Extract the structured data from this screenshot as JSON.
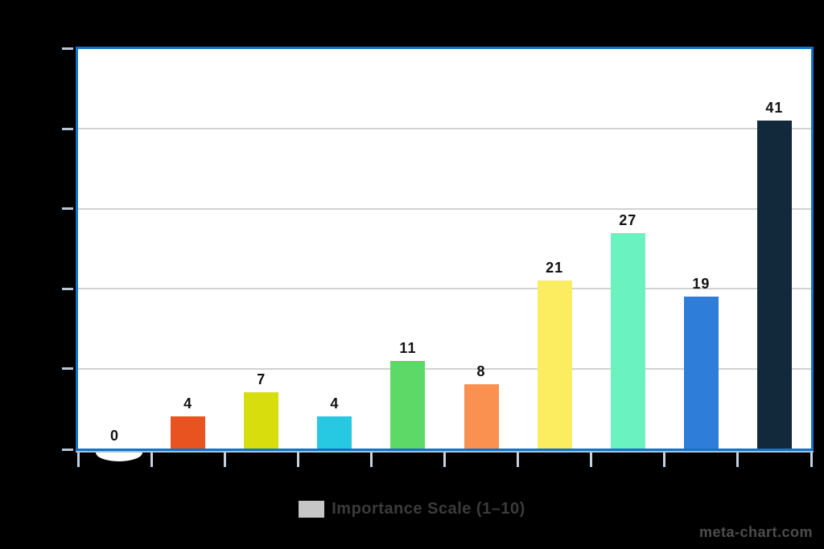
{
  "chart_data": {
    "type": "bar",
    "title": "",
    "series": [
      {
        "name": "Importance Scale (1–10)",
        "values": [
          0,
          4,
          7,
          4,
          11,
          8,
          21,
          27,
          19,
          41
        ],
        "colors": [
          "#ffffff",
          "#e9531f",
          "#d8dd0e",
          "#27c8e1",
          "#5cd966",
          "#fa9150",
          "#fcec60",
          "#6af3c1",
          "#2e7dd9",
          "#12293c"
        ]
      }
    ],
    "value_labels": [
      "0",
      "4",
      "7",
      "4",
      "11",
      "8",
      "21",
      "27",
      "19",
      "41"
    ],
    "ylim": [
      0,
      50
    ],
    "y_tick_step": 10,
    "grid": true,
    "legend_position": "bottom",
    "x_tick_count": 11,
    "x_axis_labels_visible": false,
    "y_axis_labels_visible": false
  },
  "legend": {
    "label": "Importance Scale (1–10)",
    "swatch_color": "#c6c6c6"
  },
  "watermark": {
    "text": "meta-chart.com"
  },
  "colors": {
    "page_background": "#000000",
    "plot_background": "#ffffff",
    "plot_border": "#1173c8",
    "gridline": "#d2d2d2",
    "y_tick": "#b9c6d6",
    "x_tick": "#c3d2de",
    "axis_underline": "#a9c3da",
    "value_label": "#111111",
    "legend_text": "#3b3b3b",
    "legend_swatch": "#c6c6c6",
    "watermark_text": "#4d4d4d"
  }
}
